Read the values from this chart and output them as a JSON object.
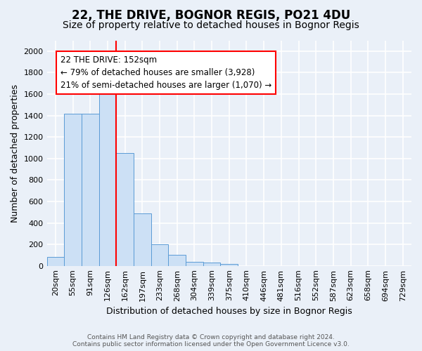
{
  "title": "22, THE DRIVE, BOGNOR REGIS, PO21 4DU",
  "subtitle": "Size of property relative to detached houses in Bognor Regis",
  "xlabel": "Distribution of detached houses by size in Bognor Regis",
  "ylabel": "Number of detached properties",
  "footer_line1": "Contains HM Land Registry data © Crown copyright and database right 2024.",
  "footer_line2": "Contains public sector information licensed under the Open Government Licence v3.0.",
  "categories": [
    "20sqm",
    "55sqm",
    "91sqm",
    "126sqm",
    "162sqm",
    "197sqm",
    "233sqm",
    "268sqm",
    "304sqm",
    "339sqm",
    "375sqm",
    "410sqm",
    "446sqm",
    "481sqm",
    "516sqm",
    "552sqm",
    "587sqm",
    "623sqm",
    "658sqm",
    "694sqm",
    "729sqm"
  ],
  "values": [
    80,
    1420,
    1420,
    1620,
    1050,
    490,
    200,
    105,
    35,
    30,
    20,
    0,
    0,
    0,
    0,
    0,
    0,
    0,
    0,
    0,
    0
  ],
  "bar_color": "#cce0f5",
  "bar_edge_color": "#5b9bd5",
  "vline_index": 4,
  "vline_color": "red",
  "annotation_line1": "22 THE DRIVE: 152sqm",
  "annotation_line2": "← 79% of detached houses are smaller (3,928)",
  "annotation_line3": "21% of semi-detached houses are larger (1,070) →",
  "annotation_box_color": "white",
  "annotation_box_edge_color": "red",
  "ylim": [
    0,
    2100
  ],
  "yticks": [
    0,
    200,
    400,
    600,
    800,
    1000,
    1200,
    1400,
    1600,
    1800,
    2000
  ],
  "background_color": "#eaf0f8",
  "plot_background": "#eaf0f8",
  "grid_color": "white",
  "title_fontsize": 12,
  "subtitle_fontsize": 10,
  "axis_fontsize": 9,
  "tick_fontsize": 8
}
